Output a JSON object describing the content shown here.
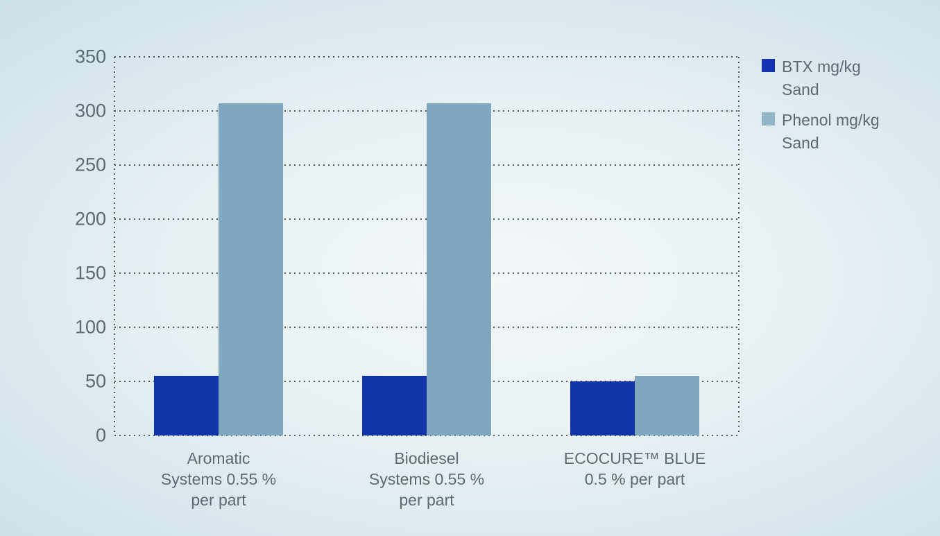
{
  "chart_data": {
    "type": "bar",
    "title": "",
    "xlabel": "",
    "ylabel": "",
    "ylim": [
      0,
      350
    ],
    "yticks": [
      0,
      50,
      100,
      150,
      200,
      250,
      300,
      350
    ],
    "grid": "dotted horizontal gridlines with dotted left/right plot borders, no solid axes",
    "legend_position": "top-right",
    "categories": [
      {
        "label": "Aromatic Systems 0.55 % per part",
        "lines": [
          "Aromatic",
          "Systems 0.55 %",
          "per part"
        ]
      },
      {
        "label": "Biodiesel Systems 0.55 % per part",
        "lines": [
          "Biodiesel",
          "Systems 0.55 %",
          "per part"
        ]
      },
      {
        "label": "ECOCURE™ BLUE 0.5 % per part",
        "lines": [
          "ECOCURE™ BLUE",
          "0.5 % per part"
        ]
      }
    ],
    "series": [
      {
        "name": "BTX mg/kg Sand",
        "legend_lines": [
          "BTX mg/kg",
          "Sand"
        ],
        "color": "#0e34a8",
        "legend_color": "#1634b2",
        "values": [
          55,
          55,
          50
        ]
      },
      {
        "name": "Phenol mg/kg Sand",
        "legend_lines": [
          "Phenol mg/kg",
          "Sand"
        ],
        "color": "#7fa8c0",
        "legend_color": "#8fb4c6",
        "values": [
          307,
          307,
          55
        ]
      }
    ]
  },
  "style": {
    "text_color": "#5c6a74",
    "dot_color": "#4a5862",
    "background_edge": "#c3dbe6",
    "background_center": "#f2f7f8"
  }
}
